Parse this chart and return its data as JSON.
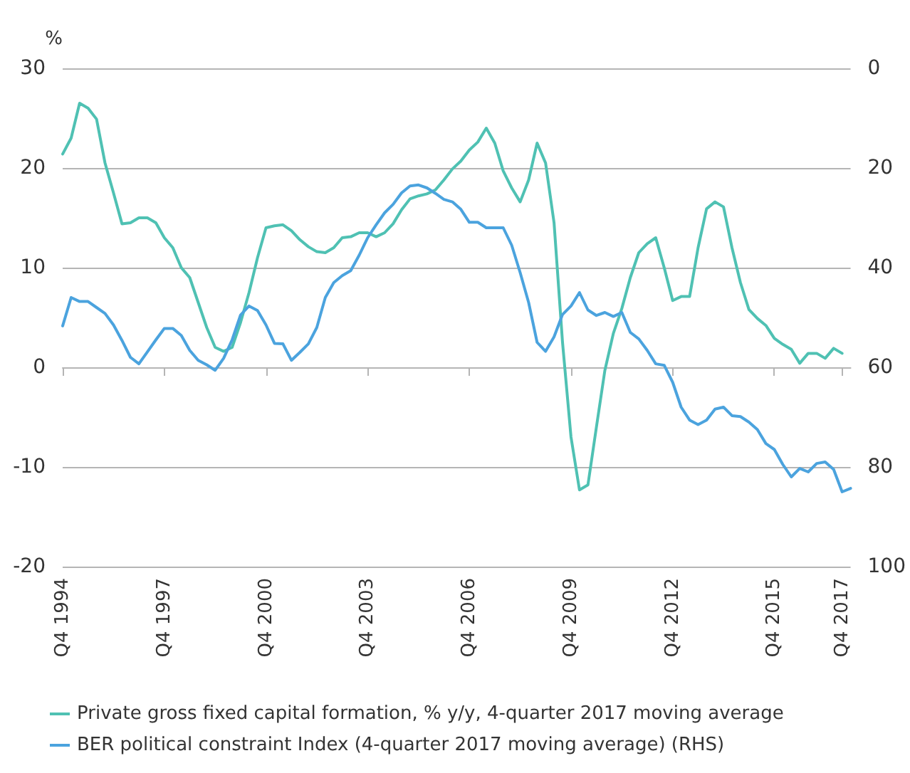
{
  "chart_data": {
    "type": "line",
    "ylabel": "%",
    "categories": [
      "Q4 1994",
      null,
      null,
      null,
      null,
      null,
      null,
      null,
      null,
      null,
      null,
      null,
      "Q4 1997",
      null,
      null,
      null,
      null,
      null,
      null,
      null,
      null,
      null,
      null,
      null,
      "Q4 2000",
      null,
      null,
      null,
      null,
      null,
      null,
      null,
      null,
      null,
      null,
      null,
      "Q4 2003",
      null,
      null,
      null,
      null,
      null,
      null,
      null,
      null,
      null,
      null,
      null,
      "Q4 2006",
      null,
      null,
      null,
      null,
      null,
      null,
      null,
      null,
      null,
      null,
      null,
      "Q4 2009",
      null,
      null,
      null,
      null,
      null,
      null,
      null,
      null,
      null,
      null,
      null,
      "Q4 2012",
      null,
      null,
      null,
      null,
      null,
      null,
      null,
      null,
      null,
      null,
      null,
      "Q4 2015",
      null,
      null,
      null,
      null,
      null,
      null,
      null,
      "Q4 2017",
      null
    ],
    "series": [
      {
        "name": "Private gross fixed capital formation, % y/y, 4-quarter 2017 moving average",
        "color": "#4fc1b3",
        "values": [
          21.4,
          23,
          26.5,
          26,
          24.9,
          20.5,
          17.5,
          14.4,
          14.5,
          15,
          15,
          14.5,
          13,
          12,
          10,
          9,
          6.5,
          4,
          2,
          1.6,
          2,
          4.5,
          7.5,
          11,
          14,
          14.2,
          14.3,
          13.7,
          12.8,
          12.1,
          11.6,
          11.5,
          12,
          13,
          13.1,
          13.5,
          13.5,
          13.1,
          13.5,
          14.4,
          15.8,
          16.9,
          17.2,
          17.4,
          17.8,
          18.8,
          19.9,
          20.7,
          21.8,
          22.6,
          24,
          22.5,
          19.7,
          18,
          16.6,
          18.8,
          22.5,
          20.5,
          14.5,
          2.5,
          -7,
          -12.3,
          -11.8,
          -6,
          -0.3,
          3.4,
          5.9,
          9,
          11.5,
          12.4,
          13,
          10,
          6.7,
          7.1,
          7.1,
          12,
          15.9,
          16.6,
          16.1,
          12,
          8.5,
          5.8,
          4.9,
          4.2,
          2.9,
          2.3,
          1.8,
          0.4,
          1.4,
          1.4,
          0.9,
          1.9,
          1.4,
          null
        ]
      },
      {
        "name": "BER political constraint Index (4-quarter 2017 moving average) (RHS)",
        "color": "#4ba3de",
        "axis": "y2",
        "values": [
          51.7,
          46,
          46.8,
          46.8,
          48,
          49.2,
          51.5,
          54.6,
          58,
          59.3,
          56.9,
          54.5,
          52.2,
          52.2,
          53.6,
          56.6,
          58.6,
          59.5,
          60.6,
          58.2,
          54.5,
          49.5,
          47.7,
          48.6,
          51.5,
          55.2,
          55.3,
          58.6,
          57,
          55.3,
          52,
          46,
          43,
          41.6,
          40.6,
          37.5,
          34,
          31.4,
          29,
          27.3,
          25,
          23.6,
          23.4,
          24,
          25.1,
          26.3,
          26.8,
          28.3,
          30.9,
          30.9,
          32,
          32,
          32,
          35.5,
          41,
          47,
          55,
          56.8,
          53.9,
          49.4,
          47.7,
          45,
          48.5,
          49.6,
          49,
          49.8,
          49,
          53,
          54.3,
          56.6,
          59.3,
          59.6,
          63,
          68,
          70.6,
          71.5,
          70.6,
          68.4,
          68,
          69.7,
          69.9,
          71,
          72.5,
          75.3,
          76.5,
          79.5,
          82,
          80.3,
          81,
          79.3,
          79,
          80.5,
          85,
          84.3
        ]
      }
    ],
    "ylim": [
      -20,
      30
    ],
    "yticks": [
      -20,
      -10,
      0,
      10,
      20,
      30
    ],
    "y2lim": [
      100,
      0
    ],
    "y2ticks": [
      0,
      20,
      40,
      60,
      80,
      100
    ],
    "grid": "y",
    "legend": "bottom",
    "marker": "none",
    "line_style": "solid"
  }
}
